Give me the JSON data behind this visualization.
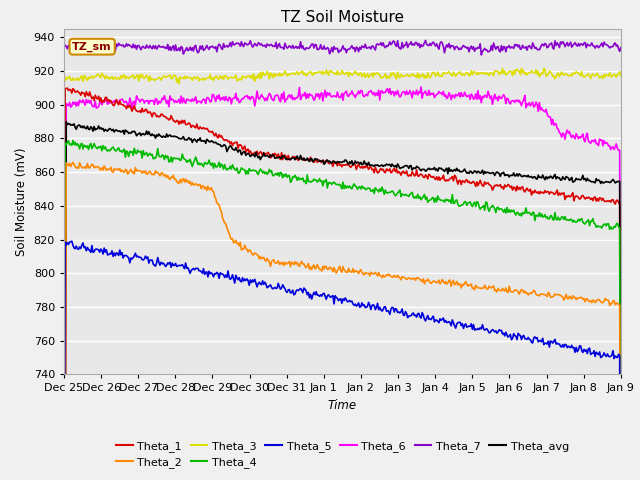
{
  "title": "TZ Soil Moisture",
  "xlabel": "Time",
  "ylabel": "Soil Moisture (mV)",
  "label_box": "TZ_sm",
  "ylim": [
    740,
    945
  ],
  "yticks": [
    740,
    760,
    780,
    800,
    820,
    840,
    860,
    880,
    900,
    920,
    940
  ],
  "background_color": "#e8e8e8",
  "fig_facecolor": "#f0f0f0",
  "series": {
    "Theta_1": {
      "color": "#dd0000"
    },
    "Theta_2": {
      "color": "#ff8800"
    },
    "Theta_3": {
      "color": "#dddd00"
    },
    "Theta_4": {
      "color": "#00bb00"
    },
    "Theta_5": {
      "color": "#0000dd"
    },
    "Theta_6": {
      "color": "#ff00ff"
    },
    "Theta_7": {
      "color": "#8800cc"
    },
    "Theta_avg": {
      "color": "#000000"
    }
  },
  "xtick_labels": [
    "Dec 25",
    "Dec 26",
    "Dec 27",
    "Dec 28",
    "Dec 29",
    "Dec 30",
    "Dec 31",
    "Jan 1",
    "Jan 2",
    "Jan 3",
    "Jan 4",
    "Jan 5",
    "Jan 6",
    "Jan 7",
    "Jan 8",
    "Jan 9"
  ],
  "num_points": 500
}
